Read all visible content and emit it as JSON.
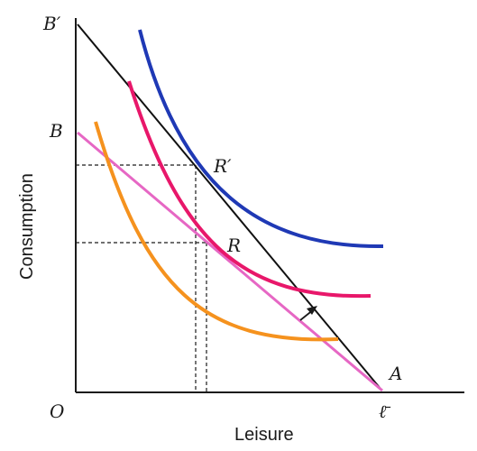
{
  "labels": {
    "b_prime": "B′",
    "b": "B",
    "origin": "O",
    "r_prime": "R′",
    "r": "R",
    "a": "A",
    "l_bar": "ℓ̄",
    "x_axis": "Leisure",
    "y_axis": "Consumption"
  },
  "colors": {
    "axes": "#1a1a1a",
    "budget_line_new": "#111111",
    "budget_line_compensated": "#e667c4",
    "indifference_high": "#1f39b5",
    "indifference_mid": "#e8176a",
    "indifference_low": "#f5921e",
    "guide_lines": "#1a1a1a"
  }
}
